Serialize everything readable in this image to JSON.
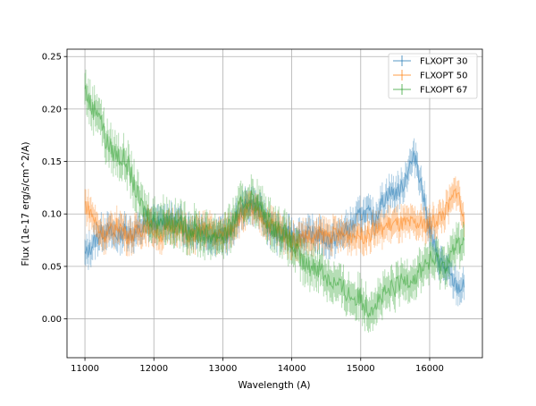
{
  "chart_data": {
    "type": "line",
    "title": "",
    "xlabel": "Wavelength (A)",
    "ylabel": "Flux (1e-17 erg/s/cm^2/A)",
    "xlim": [
      10740,
      16765
    ],
    "ylim": [
      -0.037,
      0.257
    ],
    "xticks": [
      11000,
      12000,
      13000,
      14000,
      15000,
      16000
    ],
    "xtick_labels": [
      "11000",
      "12000",
      "13000",
      "14000",
      "15000",
      "16000"
    ],
    "yticks": [
      0.0,
      0.05,
      0.1,
      0.15,
      0.2,
      0.25
    ],
    "ytick_labels": [
      "0.00",
      "0.05",
      "0.10",
      "0.15",
      "0.20",
      "0.25"
    ],
    "grid": true,
    "legend_position": "top-right",
    "x": [
      11000,
      11100,
      11200,
      11300,
      11400,
      11500,
      11600,
      11700,
      11800,
      11900,
      12000,
      12100,
      12200,
      12300,
      12400,
      12500,
      12600,
      12700,
      12800,
      12900,
      13000,
      13100,
      13200,
      13300,
      13400,
      13500,
      13600,
      13700,
      13800,
      13900,
      14000,
      14100,
      14200,
      14300,
      14400,
      14500,
      14600,
      14700,
      14800,
      14900,
      15000,
      15100,
      15200,
      15300,
      15400,
      15500,
      15600,
      15700,
      15800,
      15900,
      16000,
      16100,
      16200,
      16300,
      16400,
      16500
    ],
    "series": [
      {
        "name": "FLXOPT 30",
        "color": "#1f77b4",
        "error": 0.012,
        "values": [
          0.06,
          0.07,
          0.08,
          0.085,
          0.08,
          0.08,
          0.085,
          0.08,
          0.085,
          0.09,
          0.09,
          0.09,
          0.095,
          0.09,
          0.09,
          0.085,
          0.085,
          0.085,
          0.08,
          0.08,
          0.08,
          0.08,
          0.095,
          0.105,
          0.11,
          0.105,
          0.095,
          0.085,
          0.08,
          0.08,
          0.08,
          0.08,
          0.08,
          0.08,
          0.08,
          0.075,
          0.075,
          0.08,
          0.085,
          0.09,
          0.1,
          0.1,
          0.095,
          0.11,
          0.12,
          0.12,
          0.125,
          0.145,
          0.155,
          0.12,
          0.085,
          0.06,
          0.05,
          0.04,
          0.03,
          0.03
        ]
      },
      {
        "name": "FLXOPT 50",
        "color": "#ff7f0e",
        "error": 0.012,
        "values": [
          0.11,
          0.1,
          0.085,
          0.08,
          0.085,
          0.09,
          0.08,
          0.08,
          0.085,
          0.09,
          0.085,
          0.08,
          0.085,
          0.09,
          0.085,
          0.08,
          0.08,
          0.085,
          0.085,
          0.08,
          0.08,
          0.085,
          0.095,
          0.1,
          0.105,
          0.1,
          0.095,
          0.09,
          0.085,
          0.08,
          0.075,
          0.075,
          0.08,
          0.075,
          0.08,
          0.08,
          0.08,
          0.08,
          0.08,
          0.08,
          0.08,
          0.08,
          0.085,
          0.085,
          0.09,
          0.09,
          0.09,
          0.09,
          0.09,
          0.09,
          0.09,
          0.095,
          0.1,
          0.11,
          0.125,
          0.09
        ]
      },
      {
        "name": "FLXOPT 67",
        "color": "#2ca02c",
        "error": 0.015,
        "values": [
          0.22,
          0.2,
          0.2,
          0.17,
          0.16,
          0.155,
          0.15,
          0.13,
          0.11,
          0.1,
          0.095,
          0.095,
          0.095,
          0.09,
          0.09,
          0.085,
          0.085,
          0.08,
          0.08,
          0.08,
          0.08,
          0.085,
          0.1,
          0.11,
          0.115,
          0.11,
          0.1,
          0.09,
          0.085,
          0.08,
          0.07,
          0.06,
          0.05,
          0.05,
          0.05,
          0.04,
          0.035,
          0.03,
          0.025,
          0.02,
          0.02,
          0.01,
          0.015,
          0.02,
          0.025,
          0.03,
          0.035,
          0.04,
          0.04,
          0.05,
          0.055,
          0.055,
          0.05,
          0.06,
          0.07,
          0.075
        ]
      }
    ]
  }
}
